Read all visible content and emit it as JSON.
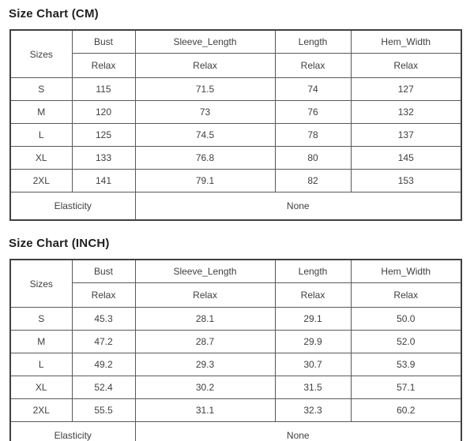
{
  "colors": {
    "title_text": "#1f1f1f",
    "cell_text": "#3f3f3f",
    "border_outer": "#404040",
    "border_inner": "#595959",
    "background": "#ffffff"
  },
  "tables": [
    {
      "title": "Size Chart (CM)",
      "corner_header": "Sizes",
      "columns": [
        "Bust",
        "Sleeve_Length",
        "Length",
        "Hem_Width"
      ],
      "subheader": [
        "Relax",
        "Relax",
        "Relax",
        "Relax"
      ],
      "rows": [
        {
          "size": "S",
          "values": [
            "115",
            "71.5",
            "74",
            "127"
          ]
        },
        {
          "size": "M",
          "values": [
            "120",
            "73",
            "76",
            "132"
          ]
        },
        {
          "size": "L",
          "values": [
            "125",
            "74.5",
            "78",
            "137"
          ]
        },
        {
          "size": "XL",
          "values": [
            "133",
            "76.8",
            "80",
            "145"
          ]
        },
        {
          "size": "2XL",
          "values": [
            "141",
            "79.1",
            "82",
            "153"
          ]
        }
      ],
      "footer": {
        "label": "Elasticity",
        "value": "None"
      }
    },
    {
      "title": "Size Chart (INCH)",
      "corner_header": "Sizes",
      "columns": [
        "Bust",
        "Sleeve_Length",
        "Length",
        "Hem_Width"
      ],
      "subheader": [
        "Relax",
        "Relax",
        "Relax",
        "Relax"
      ],
      "rows": [
        {
          "size": "S",
          "values": [
            "45.3",
            "28.1",
            "29.1",
            "50.0"
          ]
        },
        {
          "size": "M",
          "values": [
            "47.2",
            "28.7",
            "29.9",
            "52.0"
          ]
        },
        {
          "size": "L",
          "values": [
            "49.2",
            "29.3",
            "30.7",
            "53.9"
          ]
        },
        {
          "size": "XL",
          "values": [
            "52.4",
            "30.2",
            "31.5",
            "57.1"
          ]
        },
        {
          "size": "2XL",
          "values": [
            "55.5",
            "31.1",
            "32.3",
            "60.2"
          ]
        }
      ],
      "footer": {
        "label": "Elasticity",
        "value": "None"
      }
    }
  ],
  "chart_data": [
    {
      "type": "table",
      "title": "Size Chart (CM)",
      "columns": [
        "Sizes",
        "Bust (Relax)",
        "Sleeve_Length (Relax)",
        "Length (Relax)",
        "Hem_Width (Relax)"
      ],
      "rows": [
        [
          "S",
          115,
          71.5,
          74,
          127
        ],
        [
          "M",
          120,
          73,
          76,
          132
        ],
        [
          "L",
          125,
          74.5,
          78,
          137
        ],
        [
          "XL",
          133,
          76.8,
          80,
          145
        ],
        [
          "2XL",
          141,
          79.1,
          82,
          153
        ]
      ],
      "footer": [
        "Elasticity",
        "None"
      ]
    },
    {
      "type": "table",
      "title": "Size Chart (INCH)",
      "columns": [
        "Sizes",
        "Bust (Relax)",
        "Sleeve_Length (Relax)",
        "Length (Relax)",
        "Hem_Width (Relax)"
      ],
      "rows": [
        [
          "S",
          45.3,
          28.1,
          29.1,
          50.0
        ],
        [
          "M",
          47.2,
          28.7,
          29.9,
          52.0
        ],
        [
          "L",
          49.2,
          29.3,
          30.7,
          53.9
        ],
        [
          "XL",
          52.4,
          30.2,
          31.5,
          57.1
        ],
        [
          "2XL",
          55.5,
          31.1,
          32.3,
          60.2
        ]
      ],
      "footer": [
        "Elasticity",
        "None"
      ]
    }
  ]
}
